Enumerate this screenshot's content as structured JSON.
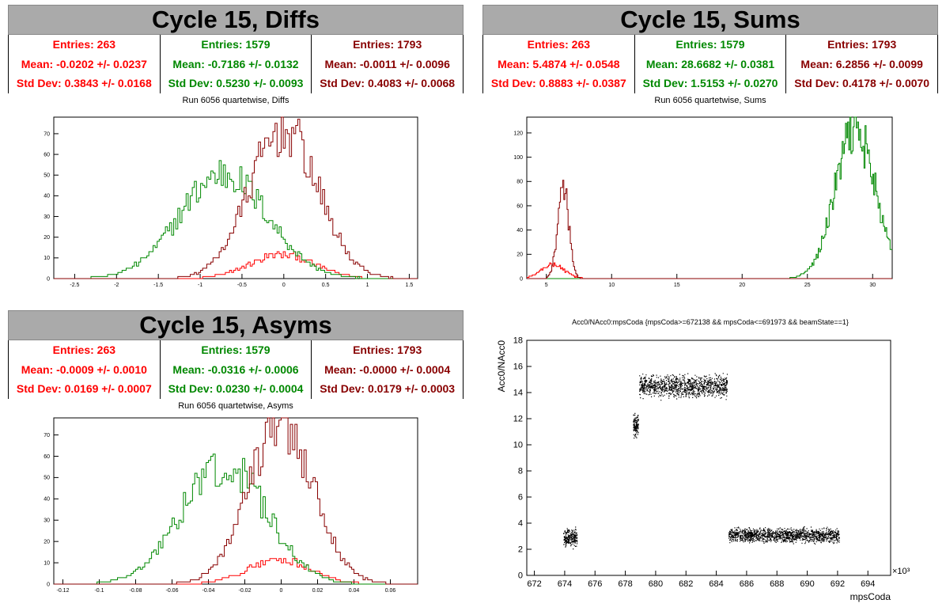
{
  "colors": {
    "series1": "#ff0000",
    "series2": "#008800",
    "series3": "#880000",
    "title_bg": "#aaaaaa"
  },
  "panels": {
    "diffs": {
      "title": "Cycle 15, Diffs",
      "subtitle": "Run 6056 quartetwise, Diffs",
      "stats": [
        {
          "entries": "Entries: 263",
          "mean": "Mean: -0.0202 +/- 0.0237",
          "std": "Std Dev: 0.3843 +/- 0.0168"
        },
        {
          "entries": "Entries: 1579",
          "mean": "Mean: -0.7186 +/- 0.0132",
          "std": "Std Dev: 0.5230 +/- 0.0093"
        },
        {
          "entries": "Entries: 1793",
          "mean": "Mean: -0.0011 +/- 0.0096",
          "std": "Std Dev: 0.4083 +/- 0.0068"
        }
      ]
    },
    "sums": {
      "title": "Cycle 15, Sums",
      "subtitle": "Run 6056 quartetwise, Sums",
      "stats": [
        {
          "entries": "Entries: 263",
          "mean": "Mean: 5.4874 +/- 0.0548",
          "std": "Std Dev: 0.8883 +/- 0.0387"
        },
        {
          "entries": "Entries: 1579",
          "mean": "Mean: 28.6682 +/- 0.0381",
          "std": "Std Dev: 1.5153 +/- 0.0270"
        },
        {
          "entries": "Entries: 1793",
          "mean": "Mean: 6.2856 +/- 0.0099",
          "std": "Std Dev: 0.4178 +/- 0.0070"
        }
      ]
    },
    "asyms": {
      "title": "Cycle 15, Asyms",
      "subtitle": "Run 6056 quartetwise, Asyms",
      "stats": [
        {
          "entries": "Entries: 263",
          "mean": "Mean: -0.0009 +/- 0.0010",
          "std": "Std Dev: 0.0169 +/- 0.0007"
        },
        {
          "entries": "Entries: 1579",
          "mean": "Mean: -0.0316 +/- 0.0006",
          "std": "Std Dev: 0.0230 +/- 0.0004"
        },
        {
          "entries": "Entries: 1793",
          "mean": "Mean: -0.0000 +/- 0.0004",
          "std": "Std Dev: 0.0179 +/- 0.0003"
        }
      ]
    },
    "scatter": {
      "title": "Acc0/NAcc0:mpsCoda {mpsCoda>=672138 && mpsCoda<=691973 && beamState==1}",
      "ylabel": "Acc0/NAcc0",
      "xlabel": "mpsCoda",
      "exponent": "×10³"
    }
  },
  "chart_data": [
    {
      "type": "histogram",
      "name": "diffs",
      "xlim": [
        -2.75,
        1.6
      ],
      "ylim": [
        0,
        78
      ],
      "xticks": [
        -2.5,
        -2,
        -1.5,
        -1,
        -0.5,
        0,
        0.5,
        1,
        1.5
      ],
      "yticks": [
        0,
        10,
        20,
        30,
        40,
        50,
        60,
        70
      ],
      "series": [
        {
          "entries": 263,
          "mean": -0.0202,
          "std": 0.3843,
          "peak": 12
        },
        {
          "entries": 1579,
          "mean": -0.7186,
          "std": 0.523,
          "peak": 52
        },
        {
          "entries": 1793,
          "mean": -0.0011,
          "std": 0.4083,
          "peak": 74
        }
      ]
    },
    {
      "type": "histogram",
      "name": "sums",
      "xlim": [
        3.5,
        31.5
      ],
      "ylim": [
        0,
        133
      ],
      "xticks": [
        5,
        10,
        15,
        20,
        25,
        30
      ],
      "yticks": [
        0,
        20,
        40,
        60,
        80,
        100,
        120
      ],
      "series": [
        {
          "entries": 263,
          "mean": 5.4874,
          "std": 0.8883,
          "peak": 12
        },
        {
          "entries": 1579,
          "mean": 28.6682,
          "std": 1.5153,
          "peak": 127
        },
        {
          "entries": 1793,
          "mean": 6.2856,
          "std": 0.4178,
          "peak": 78
        }
      ]
    },
    {
      "type": "histogram",
      "name": "asyms",
      "xlim": [
        -0.125,
        0.075
      ],
      "ylim": [
        0,
        78
      ],
      "xticks": [
        -0.12,
        -0.1,
        -0.08,
        -0.06,
        -0.04,
        -0.02,
        0,
        0.02,
        0.04,
        0.06
      ],
      "yticks": [
        0,
        10,
        20,
        30,
        40,
        50,
        60,
        70
      ],
      "series": [
        {
          "entries": 263,
          "mean": -0.0009,
          "std": 0.0169,
          "peak": 12
        },
        {
          "entries": 1579,
          "mean": -0.0316,
          "std": 0.023,
          "peak": 58
        },
        {
          "entries": 1793,
          "mean": -0.0,
          "std": 0.0179,
          "peak": 76
        }
      ]
    },
    {
      "type": "scatter",
      "name": "scatter",
      "xlim": [
        671.5,
        695.5
      ],
      "ylim": [
        0,
        18
      ],
      "xticks": [
        672,
        674,
        676,
        678,
        680,
        682,
        684,
        686,
        688,
        690,
        692,
        694
      ],
      "yticks": [
        0,
        2,
        4,
        6,
        8,
        10,
        12,
        14,
        16,
        18
      ],
      "clusters": [
        {
          "x": [
            673.9,
            674.8
          ],
          "y": 2.9,
          "spread": 0.45
        },
        {
          "x": [
            678.5,
            678.85
          ],
          "y": 11.5,
          "spread": 0.6
        },
        {
          "x": [
            678.9,
            684.7
          ],
          "y": 14.5,
          "spread": 0.55
        },
        {
          "x": [
            684.8,
            692.1
          ],
          "y": 3.1,
          "spread": 0.35
        }
      ]
    }
  ]
}
